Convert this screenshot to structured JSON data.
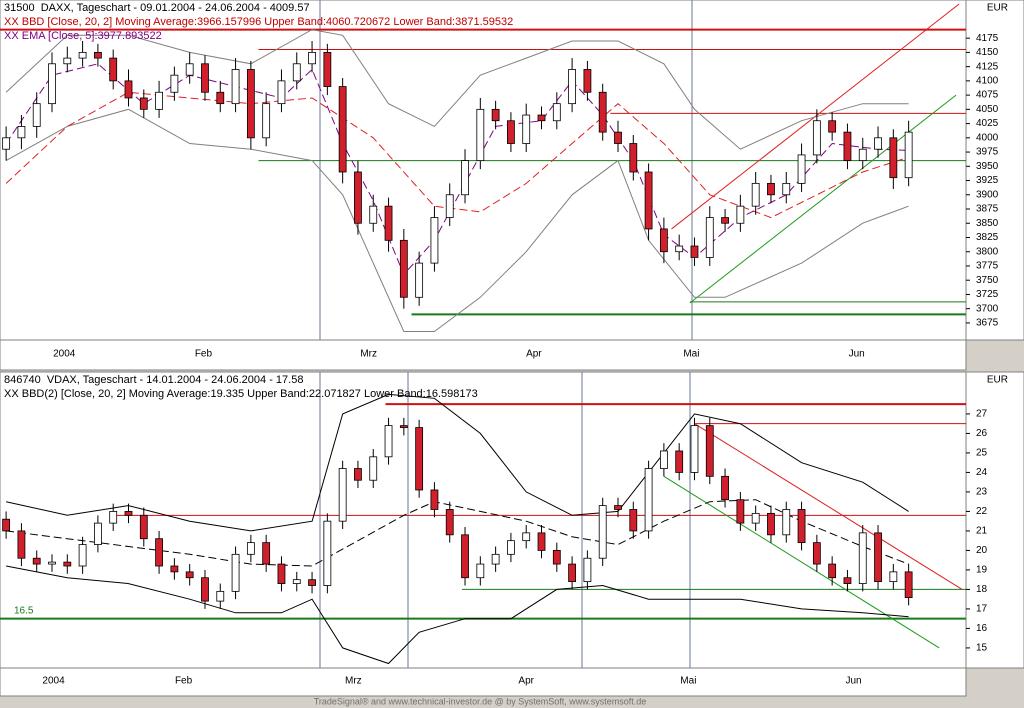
{
  "chart_data": [
    {
      "type": "candlestick",
      "title": "31500  DAXX, Tageschart - 09.01.2004 - 24.06.2004 - 4009.57",
      "indicators": [
        {
          "text": "XX BBD [Close, 20, 2] Moving Average:3966.157996 Upper Band:4060.720672 Lower Band:3871.59532",
          "color": "#c00000"
        },
        {
          "text": "XX EMA [Close, 5]:3977.893522",
          "color": "#800080"
        }
      ],
      "currency": "EUR",
      "xlim": [
        -0.4,
        62.75
      ],
      "x_ticks": [
        {
          "value": 3.8,
          "label": "2004"
        },
        {
          "value": 12.9,
          "label": "Feb"
        },
        {
          "value": 23.7,
          "label": "Mrz"
        },
        {
          "value": 34.5,
          "label": "Apr"
        },
        {
          "value": 44.8,
          "label": "Mai"
        },
        {
          "value": 55.6,
          "label": "Jun"
        }
      ],
      "ylim": [
        3645,
        4242
      ],
      "yticks": [
        3675,
        3700,
        3725,
        3750,
        3775,
        3800,
        3825,
        3850,
        3875,
        3900,
        3925,
        3950,
        3975,
        4000,
        4025,
        4050,
        4075,
        4100,
        4125,
        4150,
        4175
      ],
      "grid": false,
      "up_color": "#ffffff",
      "down_color": "#d0202c",
      "open": [
        3980,
        4000,
        4020,
        4060,
        4130,
        4140,
        4150,
        4140,
        4100,
        4070,
        4050,
        4080,
        4110,
        4130,
        4080,
        4060,
        4120,
        4000,
        4060,
        4100,
        4130,
        4150,
        4090,
        3940,
        3850,
        3880,
        3820,
        3720,
        3780,
        3860,
        3900,
        3960,
        4050,
        4030,
        3990,
        4040,
        4030,
        4060,
        4120,
        4080,
        4010,
        3990,
        3940,
        3840,
        3800,
        3810,
        3790,
        3860,
        3850,
        3880,
        3920,
        3900,
        3920,
        3970,
        4030,
        4010,
        3960,
        3980,
        4000,
        3930
      ],
      "high": [
        4020,
        4040,
        4080,
        4150,
        4160,
        4170,
        4165,
        4155,
        4120,
        4085,
        4100,
        4125,
        4150,
        4145,
        4100,
        4140,
        4135,
        4080,
        4120,
        4150,
        4170,
        4165,
        4105,
        3960,
        3900,
        3895,
        3840,
        3800,
        3880,
        3920,
        3980,
        4070,
        4065,
        4045,
        4060,
        4055,
        4080,
        4140,
        4135,
        4095,
        4030,
        4005,
        3955,
        3860,
        3830,
        3825,
        3880,
        3875,
        3900,
        3940,
        3935,
        3940,
        3990,
        4050,
        4045,
        4025,
        4000,
        4020,
        4015,
        4030
      ],
      "low": [
        3960,
        3980,
        4000,
        4045,
        4115,
        4125,
        4125,
        4085,
        4055,
        4035,
        4035,
        4065,
        4095,
        4065,
        4045,
        4045,
        3980,
        3985,
        4045,
        4085,
        4115,
        4075,
        3920,
        3830,
        3835,
        3800,
        3700,
        3705,
        3765,
        3845,
        3885,
        3945,
        4015,
        3975,
        3975,
        4015,
        4015,
        4045,
        4065,
        3995,
        3975,
        3925,
        3820,
        3780,
        3785,
        3775,
        3775,
        3835,
        3835,
        3865,
        3885,
        3885,
        3905,
        3955,
        3995,
        3945,
        3945,
        3965,
        3910,
        3915
      ],
      "close": [
        4000,
        4020,
        4060,
        4130,
        4140,
        4150,
        4140,
        4100,
        4070,
        4050,
        4080,
        4110,
        4130,
        4080,
        4060,
        4120,
        4000,
        4060,
        4100,
        4130,
        4150,
        4090,
        3940,
        3850,
        3880,
        3820,
        3720,
        3780,
        3860,
        3900,
        3960,
        4050,
        4030,
        3990,
        4040,
        4030,
        4060,
        4120,
        4080,
        4010,
        3990,
        3940,
        3840,
        3800,
        3810,
        3790,
        3860,
        3850,
        3880,
        3920,
        3900,
        3920,
        3970,
        4030,
        4010,
        3960,
        3980,
        4000,
        3930,
        4010
      ],
      "series": [
        {
          "color": "#808080",
          "dash": false,
          "x": [
            0,
            4,
            8,
            12,
            16,
            20,
            22,
            25,
            28,
            31,
            34,
            37,
            40,
            43,
            45,
            48,
            52,
            56,
            59
          ],
          "values": [
            4080,
            4180,
            4180,
            4150,
            4130,
            4190,
            4180,
            4060,
            4020,
            4110,
            4140,
            4170,
            4170,
            4130,
            4050,
            3980,
            4030,
            4060,
            4060
          ]
        },
        {
          "color": "#808080",
          "dash": false,
          "x": [
            0,
            4,
            8,
            12,
            16,
            20,
            22,
            26,
            28,
            31,
            34,
            37,
            40,
            42,
            45,
            47,
            52,
            56,
            59
          ],
          "values": [
            3960,
            4020,
            4050,
            3990,
            3980,
            3960,
            3900,
            3660,
            3660,
            3720,
            3800,
            3900,
            3960,
            3820,
            3720,
            3720,
            3780,
            3850,
            3880
          ]
        },
        {
          "color": "#e02020",
          "dash": true,
          "x": [
            0,
            4,
            8,
            12,
            16,
            20,
            24,
            28,
            31,
            34,
            37,
            40,
            43,
            46,
            50,
            53,
            56,
            59
          ],
          "values": [
            3920,
            4020,
            4080,
            4070,
            4060,
            4070,
            4000,
            3880,
            3870,
            3920,
            3990,
            4060,
            3990,
            3900,
            3860,
            3900,
            3940,
            3966
          ]
        },
        {
          "color": "#800080",
          "dash": true,
          "x": [
            0,
            3,
            6,
            9,
            12,
            15,
            18,
            20,
            22,
            24,
            26,
            28,
            30,
            32,
            35,
            37,
            39,
            41,
            43,
            45,
            48,
            51,
            54,
            57,
            59
          ],
          "values": [
            3990,
            4110,
            4130,
            4060,
            4110,
            4090,
            4070,
            4120,
            3990,
            3890,
            3760,
            3820,
            3920,
            4020,
            4030,
            4100,
            4040,
            3960,
            3830,
            3790,
            3860,
            3900,
            3990,
            3980,
            3978
          ]
        }
      ],
      "levels": [
        {
          "value": 4190,
          "x": [
            -0.4,
            62.75
          ],
          "color": "#d01010",
          "width": 2
        },
        {
          "value": 4155,
          "x": [
            16.5,
            62.75
          ],
          "color": "#d01010",
          "width": 1
        },
        {
          "value": 4043,
          "x": [
            39.5,
            62.75
          ],
          "color": "#d01010",
          "width": 1
        },
        {
          "value": 3960,
          "x": [
            16.5,
            62.75
          ],
          "color": "#1a7a1a",
          "width": 1
        },
        {
          "value": 3712,
          "x": [
            44.7,
            62.75
          ],
          "color": "#1a7a1a",
          "width": 1
        },
        {
          "value": 3690,
          "x": [
            26.5,
            62.75
          ],
          "color": "#1a7a1a",
          "width": 2
        }
      ],
      "trendlines": [
        {
          "x": [
            43.5,
            62.3
          ],
          "values": [
            3840,
            4235
          ],
          "color": "#e02020"
        },
        {
          "x": [
            44.7,
            62.1
          ],
          "values": [
            3710,
            4075
          ],
          "color": "#1a9a1a"
        }
      ],
      "annotations": []
    },
    {
      "type": "candlestick",
      "title": "846740  VDAX, Tageschart - 14.01.2004 - 24.06.2004 - 17.58",
      "indicators": [
        {
          "text": "XX BBD(2) [Close, 20, 2] Moving Average:19.335 Upper Band:22.071827 Lower Band:16.598173",
          "color": "#000000"
        }
      ],
      "currency": "EUR",
      "xlim": [
        -0.4,
        62.75
      ],
      "x_ticks": [
        {
          "value": 3.1,
          "label": "2004"
        },
        {
          "value": 11.6,
          "label": "Feb"
        },
        {
          "value": 22.7,
          "label": "Mrz"
        },
        {
          "value": 34,
          "label": "Apr"
        },
        {
          "value": 44.6,
          "label": "Mai"
        },
        {
          "value": 55.4,
          "label": "Jun"
        }
      ],
      "ylim": [
        13.97,
        29.15
      ],
      "yticks": [
        15,
        16,
        17,
        18,
        19,
        20,
        21,
        22,
        23,
        24,
        25,
        26,
        27
      ],
      "grid": false,
      "up_color": "#ffffff",
      "down_color": "#d0202c",
      "open": [
        21.6,
        21,
        19.6,
        19.3,
        19.4,
        19.2,
        20.3,
        21.4,
        22,
        21.8,
        20.6,
        19.2,
        18.9,
        18.6,
        17.4,
        17.9,
        19.8,
        20.4,
        19.3,
        18.3,
        18.5,
        18.2,
        21.5,
        24.2,
        23.6,
        24.8,
        26.4,
        26.3,
        23.1,
        22.1,
        20.8,
        18.6,
        19.3,
        19.8,
        20.5,
        20.9,
        20,
        19.3,
        18.4,
        19.6,
        22.3,
        22.1,
        21,
        24.2,
        25.1,
        24,
        26.4,
        23.8,
        22.6,
        21.4,
        21.9,
        20.8,
        22.1,
        20.4,
        19.3,
        18.6,
        18.3,
        20.9,
        18.4,
        18.9
      ],
      "high": [
        22,
        21.4,
        20,
        19.8,
        19.8,
        20.7,
        21.8,
        22.4,
        22.4,
        22.2,
        21,
        19.6,
        19.3,
        19,
        18.3,
        20.2,
        20.8,
        20.8,
        19.7,
        18.9,
        18.9,
        21.9,
        24.6,
        24.6,
        25.2,
        26.8,
        26.8,
        26.7,
        23.5,
        22.5,
        21.2,
        19.7,
        20.2,
        20.9,
        21.3,
        21.3,
        20.4,
        19.7,
        20,
        22.7,
        22.7,
        22.5,
        24.6,
        25.5,
        25.5,
        26.8,
        26.8,
        24.2,
        23,
        22.3,
        22.3,
        22.5,
        22.5,
        20.8,
        19.7,
        19,
        21.3,
        21.3,
        19.3,
        19.3
      ],
      "low": [
        20.6,
        19.2,
        18.9,
        18.9,
        18.8,
        18.8,
        19.9,
        21,
        21.4,
        20.2,
        18.8,
        18.5,
        18.2,
        17,
        17,
        17.5,
        19.4,
        18.9,
        17.9,
        17.9,
        17.8,
        17.8,
        21.1,
        23.2,
        23.2,
        24.4,
        25.9,
        22.7,
        21.7,
        20.4,
        18.2,
        18.2,
        18.9,
        19.4,
        20.1,
        19.6,
        18.9,
        18,
        18,
        19.2,
        21.7,
        20.6,
        20.6,
        23.8,
        23.6,
        23.6,
        23.4,
        22.2,
        21,
        21,
        20.4,
        20.4,
        20,
        18.9,
        18.2,
        17.9,
        17.9,
        18,
        18,
        17.18
      ],
      "close": [
        21,
        19.6,
        19.3,
        19.4,
        19.2,
        20.3,
        21.4,
        22,
        21.8,
        20.6,
        19.2,
        18.9,
        18.6,
        17.4,
        17.9,
        19.8,
        20.4,
        19.3,
        18.3,
        18.5,
        18.2,
        21.5,
        24.2,
        23.6,
        24.8,
        26.4,
        26.3,
        23.1,
        22.1,
        20.8,
        18.6,
        19.3,
        19.8,
        20.5,
        20.9,
        20,
        19.3,
        18.4,
        19.6,
        22.3,
        22.1,
        21,
        24.2,
        25.1,
        24,
        26.4,
        23.8,
        22.6,
        21.4,
        21.9,
        20.8,
        22.1,
        20.4,
        19.3,
        18.6,
        18.3,
        20.9,
        18.4,
        18.9,
        17.58
      ],
      "series": [
        {
          "color": "#000000",
          "dash": false,
          "x": [
            0,
            4,
            8,
            12,
            16,
            20,
            22,
            25,
            28,
            31,
            34,
            37,
            40,
            43,
            45,
            48,
            52,
            56,
            59
          ],
          "values": [
            22.5,
            21.8,
            22.3,
            21.5,
            21,
            21.5,
            27,
            28,
            27.8,
            26,
            23,
            21.8,
            22,
            25,
            27,
            26.5,
            24.5,
            23.5,
            22
          ]
        },
        {
          "color": "#000000",
          "dash": false,
          "x": [
            0,
            4,
            8,
            12,
            15,
            18,
            20,
            22,
            25,
            27,
            30,
            33,
            36,
            39,
            42,
            45,
            48,
            52,
            56,
            59
          ],
          "values": [
            19.2,
            18.6,
            18.3,
            17.5,
            16.8,
            16.8,
            17.5,
            15,
            14.2,
            15.8,
            16.5,
            16.5,
            18,
            18.2,
            17.5,
            17.5,
            17.5,
            17,
            16.8,
            16.6
          ]
        },
        {
          "color": "#000000",
          "dash": true,
          "x": [
            0,
            4,
            8,
            12,
            16,
            20,
            23,
            26,
            28,
            31,
            34,
            37,
            40,
            43,
            46,
            49,
            52,
            56,
            59
          ],
          "values": [
            21,
            20.6,
            20.2,
            19.8,
            19.3,
            19.2,
            20.5,
            21.8,
            22.5,
            22,
            21.5,
            20.7,
            20.3,
            21.5,
            22.5,
            22.6,
            21.5,
            20.2,
            19.3
          ]
        }
      ],
      "levels": [
        {
          "value": 27.5,
          "x": [
            24.8,
            62.75
          ],
          "color": "#d01010",
          "width": 2
        },
        {
          "value": 26.5,
          "x": [
            45,
            62.75
          ],
          "color": "#d01010",
          "width": 1
        },
        {
          "value": 21.8,
          "x": [
            7,
            62.75
          ],
          "color": "#d01010",
          "width": 1
        },
        {
          "value": 18,
          "x": [
            29.8,
            62.75
          ],
          "color": "#1a7a1a",
          "width": 1
        },
        {
          "value": 16.5,
          "x": [
            -0.4,
            62.75
          ],
          "color": "#1a7a1a",
          "width": 2
        }
      ],
      "trendlines": [
        {
          "x": [
            45,
            62.5
          ],
          "values": [
            26.5,
            18
          ],
          "color": "#e02020"
        },
        {
          "x": [
            43,
            61
          ],
          "values": [
            23.8,
            15
          ],
          "color": "#1a9a1a"
        }
      ],
      "annotations": [
        "16.5"
      ]
    }
  ],
  "footer": "TradeSignal® and www.technical-investor.de @ by SystemSoft, www.systemsoft.de"
}
